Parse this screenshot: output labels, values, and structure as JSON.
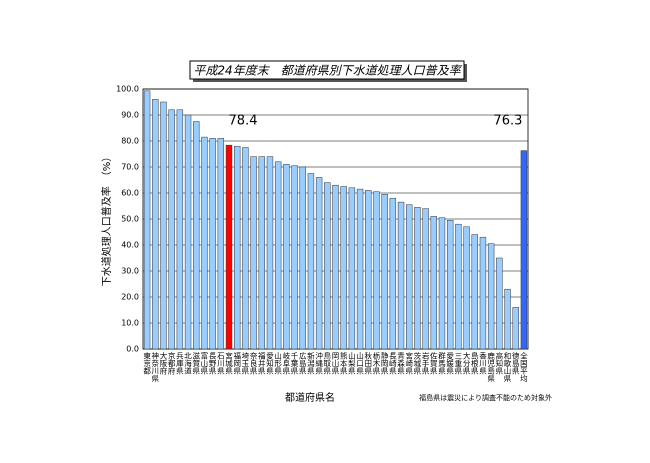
{
  "chart_data": {
    "type": "bar",
    "title": "平成24年度末　都道府県別下水道処理人口普及率",
    "ylabel": "下水道処理人口普及率　（%）",
    "xlabel": "都道府県名",
    "note": "福島県は震災により調査不能のため対象外",
    "categories": [
      "東京都",
      "神奈川県",
      "大阪府",
      "京都府",
      "兵庫県",
      "北海道",
      "滋賀県",
      "富山県",
      "長野県",
      "石川県",
      "宮城県",
      "福岡県",
      "埼玉県",
      "奈良県",
      "福井県",
      "愛知県",
      "山形県",
      "岐阜県",
      "千葉県",
      "広島県",
      "新潟県",
      "沖縄県",
      "鳥取県",
      "岡山県",
      "熊本県",
      "山梨県",
      "山口県",
      "秋田県",
      "栃木県",
      "静岡県",
      "長崎県",
      "青森県",
      "宮崎県",
      "茨城県",
      "岩手県",
      "佐賀県",
      "群馬県",
      "愛媛県",
      "三重県",
      "大分県",
      "島根県",
      "香川県",
      "鹿児島県",
      "高知県",
      "和歌山県",
      "徳島県",
      "全国平均"
    ],
    "values": [
      99.3,
      96,
      95,
      92,
      92,
      90,
      87.5,
      81.5,
      81,
      81,
      78.4,
      78,
      77.5,
      74,
      74,
      74,
      72,
      71,
      70.5,
      70,
      67.5,
      66,
      64,
      63,
      62.5,
      62,
      61.5,
      61,
      60.5,
      59.5,
      58,
      56.5,
      55.5,
      54.5,
      54,
      51,
      50.5,
      49.5,
      48,
      47,
      44,
      43,
      40.5,
      35,
      23,
      16,
      76.3
    ],
    "color": "#99ccff",
    "highlight_colors": {
      "10": "#ff0000",
      "46": "#3366ff"
    },
    "value_label_indices": [
      10,
      46
    ],
    "ylim": [
      0,
      100
    ],
    "yticks": [
      {
        "value": 0,
        "label": "0.0"
      },
      {
        "value": 10,
        "label": "10.0"
      },
      {
        "value": 20,
        "label": "20.0"
      },
      {
        "value": 30,
        "label": "30.0"
      },
      {
        "value": 40,
        "label": "40.0"
      },
      {
        "value": 50,
        "label": "50.0"
      },
      {
        "value": 60,
        "label": "60.0"
      },
      {
        "value": 70,
        "label": "70.0"
      },
      {
        "value": 80,
        "label": "80.0"
      },
      {
        "value": 90,
        "label": "90.0"
      },
      {
        "value": 100,
        "label": "100.0"
      }
    ],
    "grid": true
  }
}
